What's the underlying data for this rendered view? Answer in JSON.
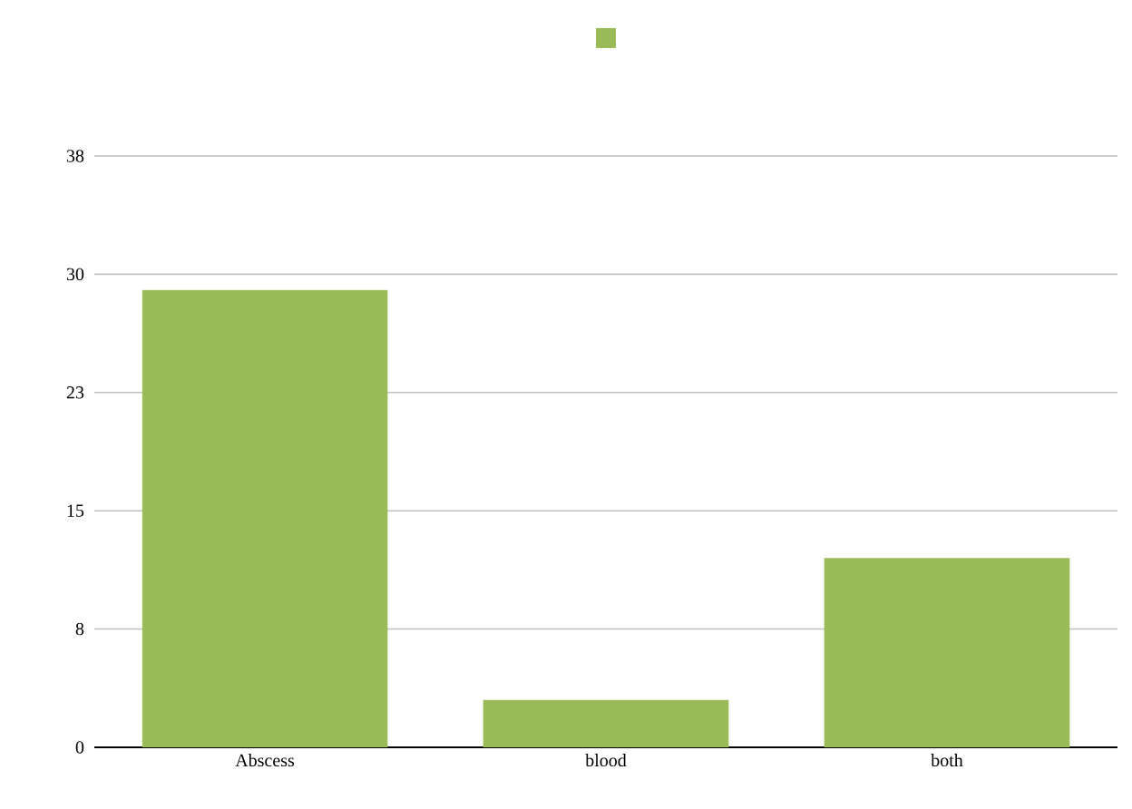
{
  "chart_data": {
    "type": "bar",
    "categories": [
      "Abscess",
      "blood",
      "both"
    ],
    "series": [
      {
        "color": "#9bbb59",
        "values": [
          29,
          3,
          12
        ]
      }
    ],
    "ylim": [
      0,
      37.5
    ],
    "yticks": [
      0,
      {
        "value": 7.5,
        "label": "8"
      },
      15,
      {
        "value": 22.5,
        "label": "23"
      },
      30,
      {
        "value": 37.5,
        "label": "38"
      }
    ],
    "grid": "y"
  }
}
